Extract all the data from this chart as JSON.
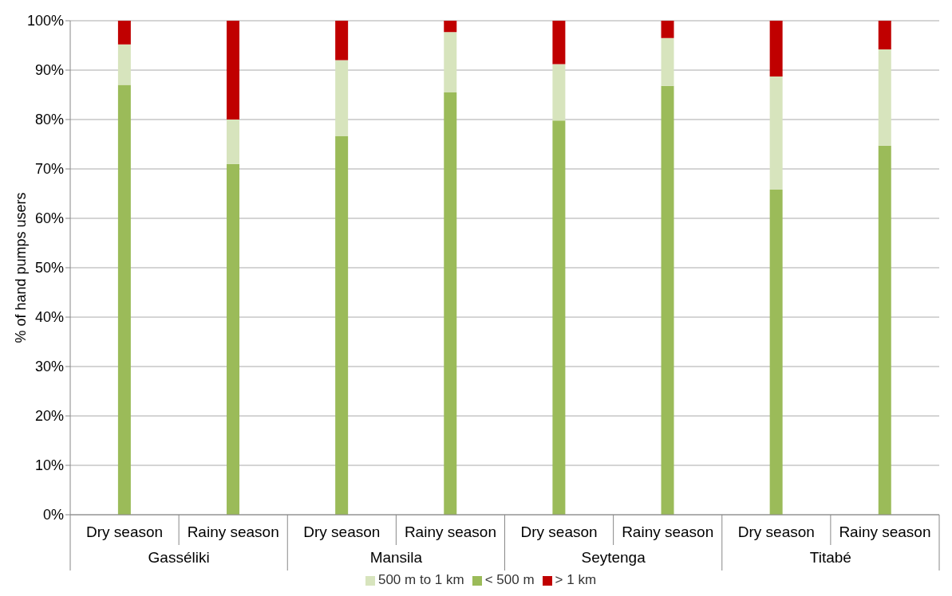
{
  "chart_data": {
    "type": "bar",
    "stacked": true,
    "ylabel": "% of hand pumps users",
    "categories": [
      "Dry season",
      "Rainy season",
      "Dry season",
      "Rainy season",
      "Dry season",
      "Rainy season",
      "Dry season",
      "Rainy season"
    ],
    "annotations": [
      "Gasséliki",
      "Mansila",
      "Seytenga",
      "Titabé"
    ],
    "series": [
      {
        "name": "< 500 m",
        "color": "#9bbb59",
        "values": [
          87,
          71,
          76.6,
          85.5,
          79.8,
          86.8,
          65.8,
          74.7
        ]
      },
      {
        "name": "500 m to 1 km",
        "color": "#d7e4bd",
        "values": [
          8.2,
          9,
          15.4,
          12.2,
          11.4,
          9.7,
          22.9,
          19.5
        ]
      },
      {
        "name": "> 1 km",
        "color": "#c00000",
        "values": [
          4.8,
          20,
          8,
          2.3,
          8.8,
          3.5,
          11.3,
          5.8
        ]
      }
    ],
    "ylim": [
      0,
      100
    ],
    "yticks": [
      {
        "value": 0,
        "label": "0%"
      },
      {
        "value": 10,
        "label": "10%"
      },
      {
        "value": 20,
        "label": "20%"
      },
      {
        "value": 30,
        "label": "30%"
      },
      {
        "value": 40,
        "label": "40%"
      },
      {
        "value": 50,
        "label": "50%"
      },
      {
        "value": 60,
        "label": "60%"
      },
      {
        "value": 70,
        "label": "70%"
      },
      {
        "value": 80,
        "label": "80%"
      },
      {
        "value": 90,
        "label": "90%"
      },
      {
        "value": 100,
        "label": "100%"
      }
    ],
    "grid": "y",
    "legend": "bottom"
  }
}
